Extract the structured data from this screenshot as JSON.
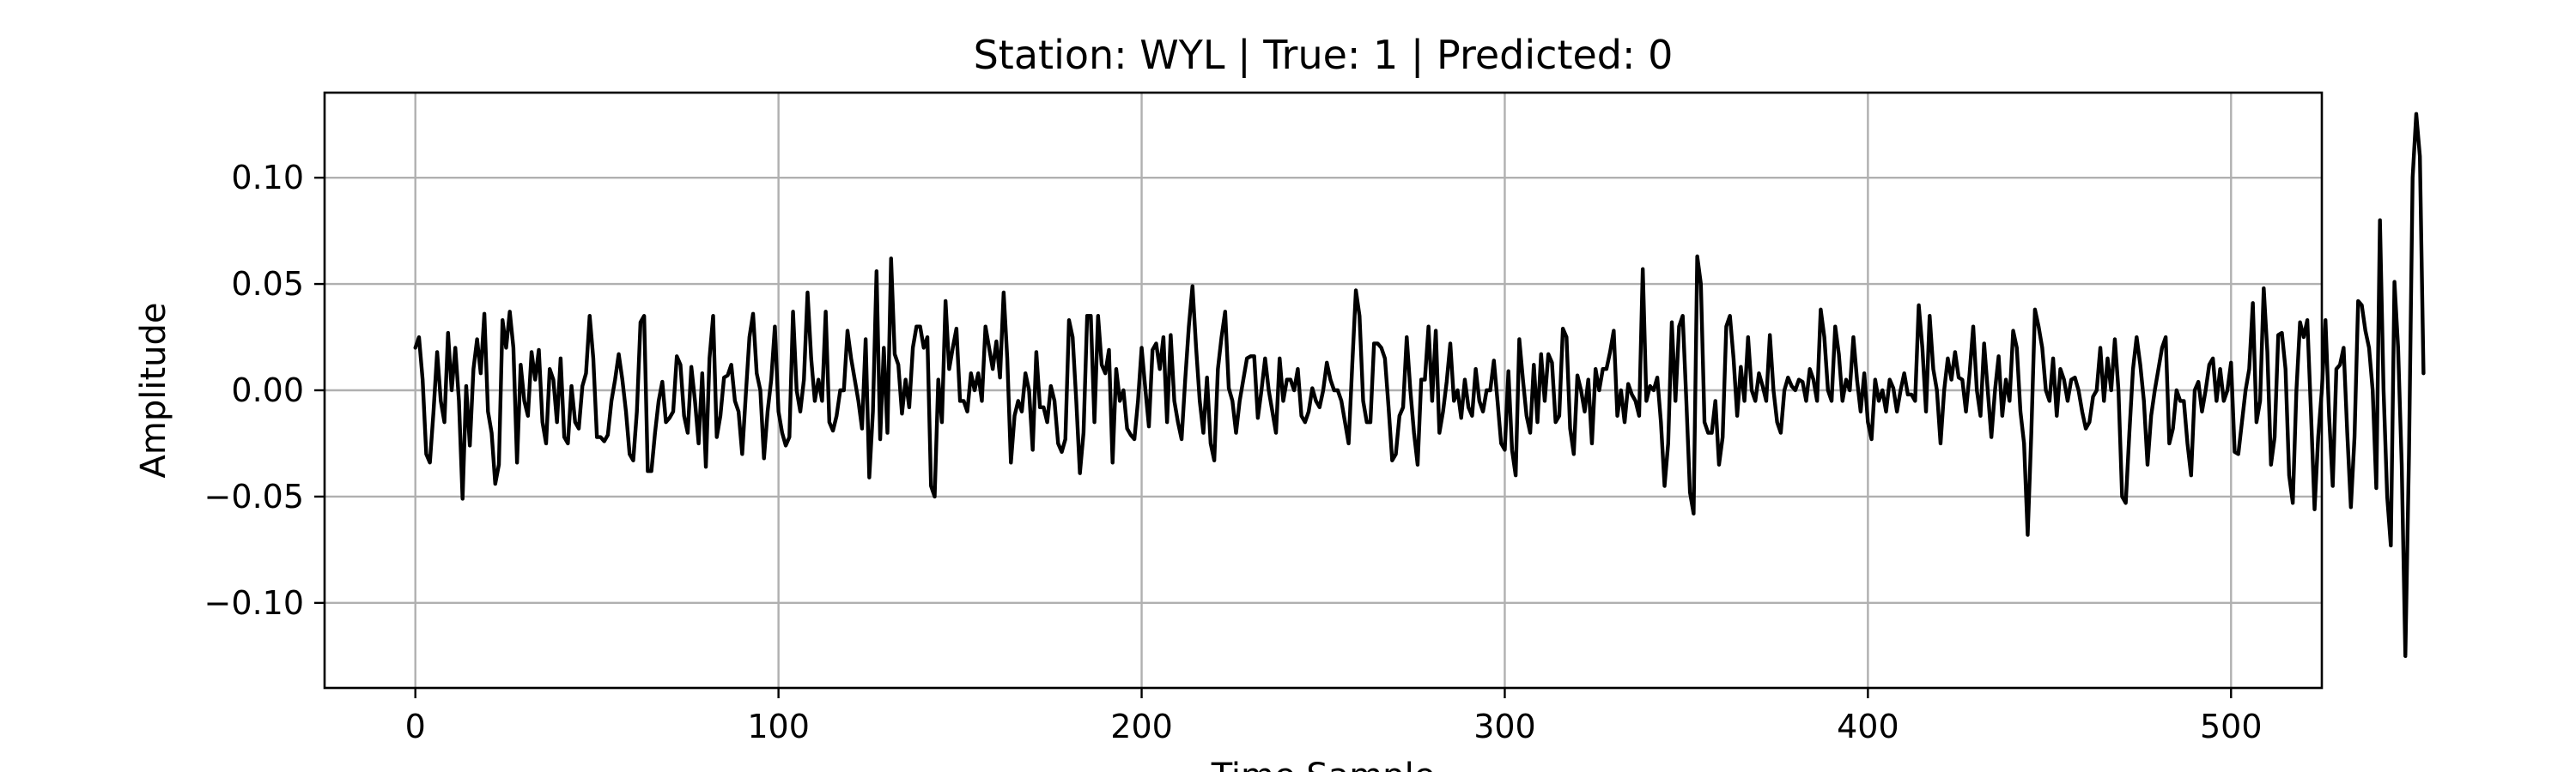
{
  "chart_data": {
    "type": "line",
    "title": "Station: WYL | True: 1 | Predicted: 0",
    "xlabel": "Time Sample",
    "ylabel": "Amplitude",
    "xlim": [
      -25,
      525
    ],
    "ylim": [
      -0.14,
      0.14
    ],
    "xticks": [
      {
        "value": 0,
        "label": "0"
      },
      {
        "value": 100,
        "label": "100"
      },
      {
        "value": 200,
        "label": "200"
      },
      {
        "value": 300,
        "label": "300"
      },
      {
        "value": 400,
        "label": "400"
      },
      {
        "value": 500,
        "label": "500"
      }
    ],
    "yticks": [
      {
        "value": -0.1,
        "label": "−0.10"
      },
      {
        "value": -0.05,
        "label": "−0.05"
      },
      {
        "value": 0.0,
        "label": "0.00"
      },
      {
        "value": 0.05,
        "label": "0.05"
      },
      {
        "value": 0.1,
        "label": "0.10"
      }
    ],
    "grid": true,
    "line_color": "#000000",
    "series": [
      {
        "x_start": 0,
        "x_step": 1,
        "values": [
          0.02,
          0.025,
          0.005,
          -0.03,
          -0.034,
          -0.01,
          0.018,
          -0.005,
          -0.015,
          0.027,
          0.0,
          0.02,
          -0.005,
          -0.051,
          0.002,
          -0.026,
          0.01,
          0.024,
          0.008,
          0.036,
          -0.01,
          -0.02,
          -0.044,
          -0.035,
          0.033,
          0.02,
          0.037,
          0.02,
          -0.034,
          0.012,
          -0.005,
          -0.012,
          0.018,
          0.005,
          0.019,
          -0.015,
          -0.025,
          0.01,
          0.005,
          -0.015,
          0.015,
          -0.022,
          -0.025,
          0.002,
          -0.015,
          -0.018,
          0.002,
          0.008,
          0.035,
          0.015,
          -0.022,
          -0.022,
          -0.024,
          -0.021,
          -0.005,
          0.005,
          0.017,
          0.005,
          -0.01,
          -0.03,
          -0.033,
          -0.01,
          0.032,
          0.035,
          -0.038,
          -0.038,
          -0.02,
          -0.005,
          0.004,
          -0.015,
          -0.013,
          -0.01,
          0.016,
          0.012,
          -0.012,
          -0.02,
          0.011,
          -0.005,
          -0.025,
          0.008,
          -0.036,
          0.015,
          0.035,
          -0.022,
          -0.012,
          0.006,
          0.007,
          0.012,
          -0.005,
          -0.01,
          -0.03,
          -0.002,
          0.025,
          0.036,
          0.008,
          0.0,
          -0.032,
          -0.01,
          0.005,
          0.03,
          -0.01,
          -0.02,
          -0.026,
          -0.022,
          0.037,
          0.0,
          -0.01,
          0.005,
          0.046,
          0.015,
          -0.005,
          0.005,
          -0.005,
          0.037,
          -0.015,
          -0.019,
          -0.012,
          0.0,
          0.0,
          0.028,
          0.015,
          0.005,
          -0.005,
          -0.018,
          0.024,
          -0.041,
          -0.01,
          0.056,
          -0.023,
          0.02,
          -0.02,
          0.062,
          0.017,
          0.012,
          -0.011,
          0.005,
          -0.008,
          0.02,
          0.03,
          0.03,
          0.02,
          0.025,
          -0.045,
          -0.05,
          0.005,
          -0.015,
          0.042,
          0.01,
          0.02,
          0.029,
          -0.005,
          -0.005,
          -0.01,
          0.008,
          0.0,
          0.008,
          -0.005,
          0.03,
          0.02,
          0.01,
          0.023,
          0.006,
          0.046,
          0.015,
          -0.034,
          -0.012,
          -0.005,
          -0.01,
          0.008,
          0.0,
          -0.028,
          0.018,
          -0.008,
          -0.008,
          -0.015,
          0.002,
          -0.005,
          -0.025,
          -0.029,
          -0.023,
          0.033,
          0.025,
          -0.005,
          -0.039,
          -0.02,
          0.035,
          0.035,
          -0.015,
          0.035,
          0.012,
          0.008,
          0.019,
          -0.034,
          0.01,
          -0.005,
          0.0,
          -0.018,
          -0.021,
          -0.023,
          -0.005,
          0.02,
          0.001,
          -0.017,
          0.019,
          0.022,
          0.01,
          0.025,
          -0.015,
          0.026,
          -0.005,
          -0.015,
          -0.023,
          0.005,
          0.03,
          0.049,
          0.02,
          -0.005,
          -0.02,
          0.006,
          -0.025,
          -0.033,
          0.01,
          0.025,
          0.037,
          0.001,
          -0.005,
          -0.02,
          -0.005,
          0.005,
          0.015,
          0.016,
          0.016,
          -0.013,
          0.0,
          0.015,
          0.0,
          -0.01,
          -0.02,
          0.015,
          -0.005,
          0.005,
          0.005,
          0.0,
          0.01,
          -0.012,
          -0.015,
          -0.01,
          0.001,
          -0.005,
          -0.008,
          0.0,
          0.013,
          0.005,
          0.0,
          0.0,
          -0.005,
          -0.015,
          -0.025,
          0.012,
          0.047,
          0.035,
          -0.005,
          -0.015,
          -0.015,
          0.022,
          0.022,
          0.02,
          0.015,
          -0.008,
          -0.033,
          -0.03,
          -0.012,
          -0.008,
          0.025,
          0.0,
          -0.02,
          -0.035,
          0.005,
          0.005,
          0.03,
          -0.005,
          0.028,
          -0.02,
          -0.01,
          0.004,
          0.022,
          -0.005,
          0.0,
          -0.013,
          0.005,
          -0.008,
          -0.012,
          0.01,
          -0.005,
          -0.01,
          0.0,
          0.0,
          0.014,
          -0.005,
          -0.025,
          -0.028,
          0.009,
          -0.028,
          -0.04,
          0.024,
          0.005,
          -0.012,
          -0.02,
          0.012,
          -0.015,
          0.017,
          -0.005,
          0.017,
          0.013,
          -0.015,
          -0.012,
          0.029,
          0.025,
          -0.018,
          -0.03,
          0.007,
          0.0,
          -0.01,
          0.005,
          -0.025,
          0.01,
          0.0,
          0.01,
          0.01,
          0.018,
          0.028,
          -0.012,
          0.0,
          -0.015,
          0.003,
          -0.002,
          -0.005,
          -0.012,
          0.057,
          -0.005,
          0.002,
          0.0,
          0.006,
          -0.015,
          -0.045,
          -0.025,
          0.032,
          -0.005,
          0.03,
          0.035,
          -0.005,
          -0.048,
          -0.058,
          0.063,
          0.05,
          -0.015,
          -0.02,
          -0.02,
          -0.005,
          -0.035,
          -0.022,
          0.03,
          0.035,
          0.015,
          -0.012,
          0.011,
          -0.005,
          0.025,
          0.0,
          -0.005,
          0.008,
          0.002,
          -0.005,
          0.026,
          0.0,
          -0.015,
          -0.02,
          0.0,
          0.006,
          0.002,
          0.0,
          0.005,
          0.004,
          -0.005,
          0.01,
          0.005,
          -0.005,
          0.038,
          0.025,
          0.0,
          -0.005,
          0.03,
          0.017,
          -0.005,
          0.005,
          0.0,
          0.025,
          0.005,
          -0.01,
          0.008,
          -0.015,
          -0.023,
          0.005,
          -0.005,
          0.0,
          -0.01,
          0.005,
          0.001,
          -0.01,
          0.0,
          0.008,
          -0.002,
          -0.002,
          -0.005,
          0.04,
          0.02,
          -0.01,
          0.035,
          0.01,
          0.0,
          -0.025,
          0.0,
          0.015,
          0.005,
          0.018,
          0.006,
          0.005,
          -0.01,
          0.008,
          0.03,
          0.0,
          -0.012,
          0.022,
          0.0,
          -0.022,
          0.0,
          0.016,
          -0.012,
          0.005,
          -0.005,
          0.028,
          0.02,
          -0.01,
          -0.025,
          -0.068,
          -0.02,
          0.038,
          0.03,
          0.02,
          0.0,
          -0.005,
          0.015,
          -0.012,
          0.01,
          0.005,
          -0.005,
          0.005,
          0.006,
          0.0,
          -0.01,
          -0.018,
          -0.015,
          -0.003,
          0.0,
          0.02,
          -0.005,
          0.015,
          0.0,
          0.024,
          0.0,
          -0.05,
          -0.053,
          -0.02,
          0.01,
          0.025,
          0.012,
          -0.005,
          -0.035,
          -0.012,
          0.0,
          0.01,
          0.02,
          0.025,
          -0.025,
          -0.018,
          0.0,
          -0.005,
          -0.005,
          -0.025,
          -0.04,
          0.0,
          0.004,
          -0.01,
          0.0,
          0.012,
          0.015,
          -0.005,
          0.01,
          -0.005,
          0.0,
          0.013,
          -0.029,
          -0.03,
          -0.015,
          0.0,
          0.01,
          0.041,
          -0.015,
          -0.005,
          0.048,
          0.018,
          -0.035,
          -0.022,
          0.026,
          0.027,
          0.01,
          -0.04,
          -0.053,
          0.0,
          0.032,
          0.025,
          0.033,
          -0.01,
          -0.056,
          -0.022,
          0.0,
          0.033,
          -0.012,
          -0.045,
          0.01,
          0.012,
          0.02,
          -0.02,
          -0.055,
          -0.022,
          0.042,
          0.04,
          0.028,
          0.02,
          0.0,
          -0.046,
          0.08,
          0.0,
          -0.05,
          -0.073,
          0.051,
          0.02,
          -0.035,
          -0.125,
          -0.03,
          0.1,
          0.13,
          0.11,
          0.008
        ]
      }
    ]
  }
}
